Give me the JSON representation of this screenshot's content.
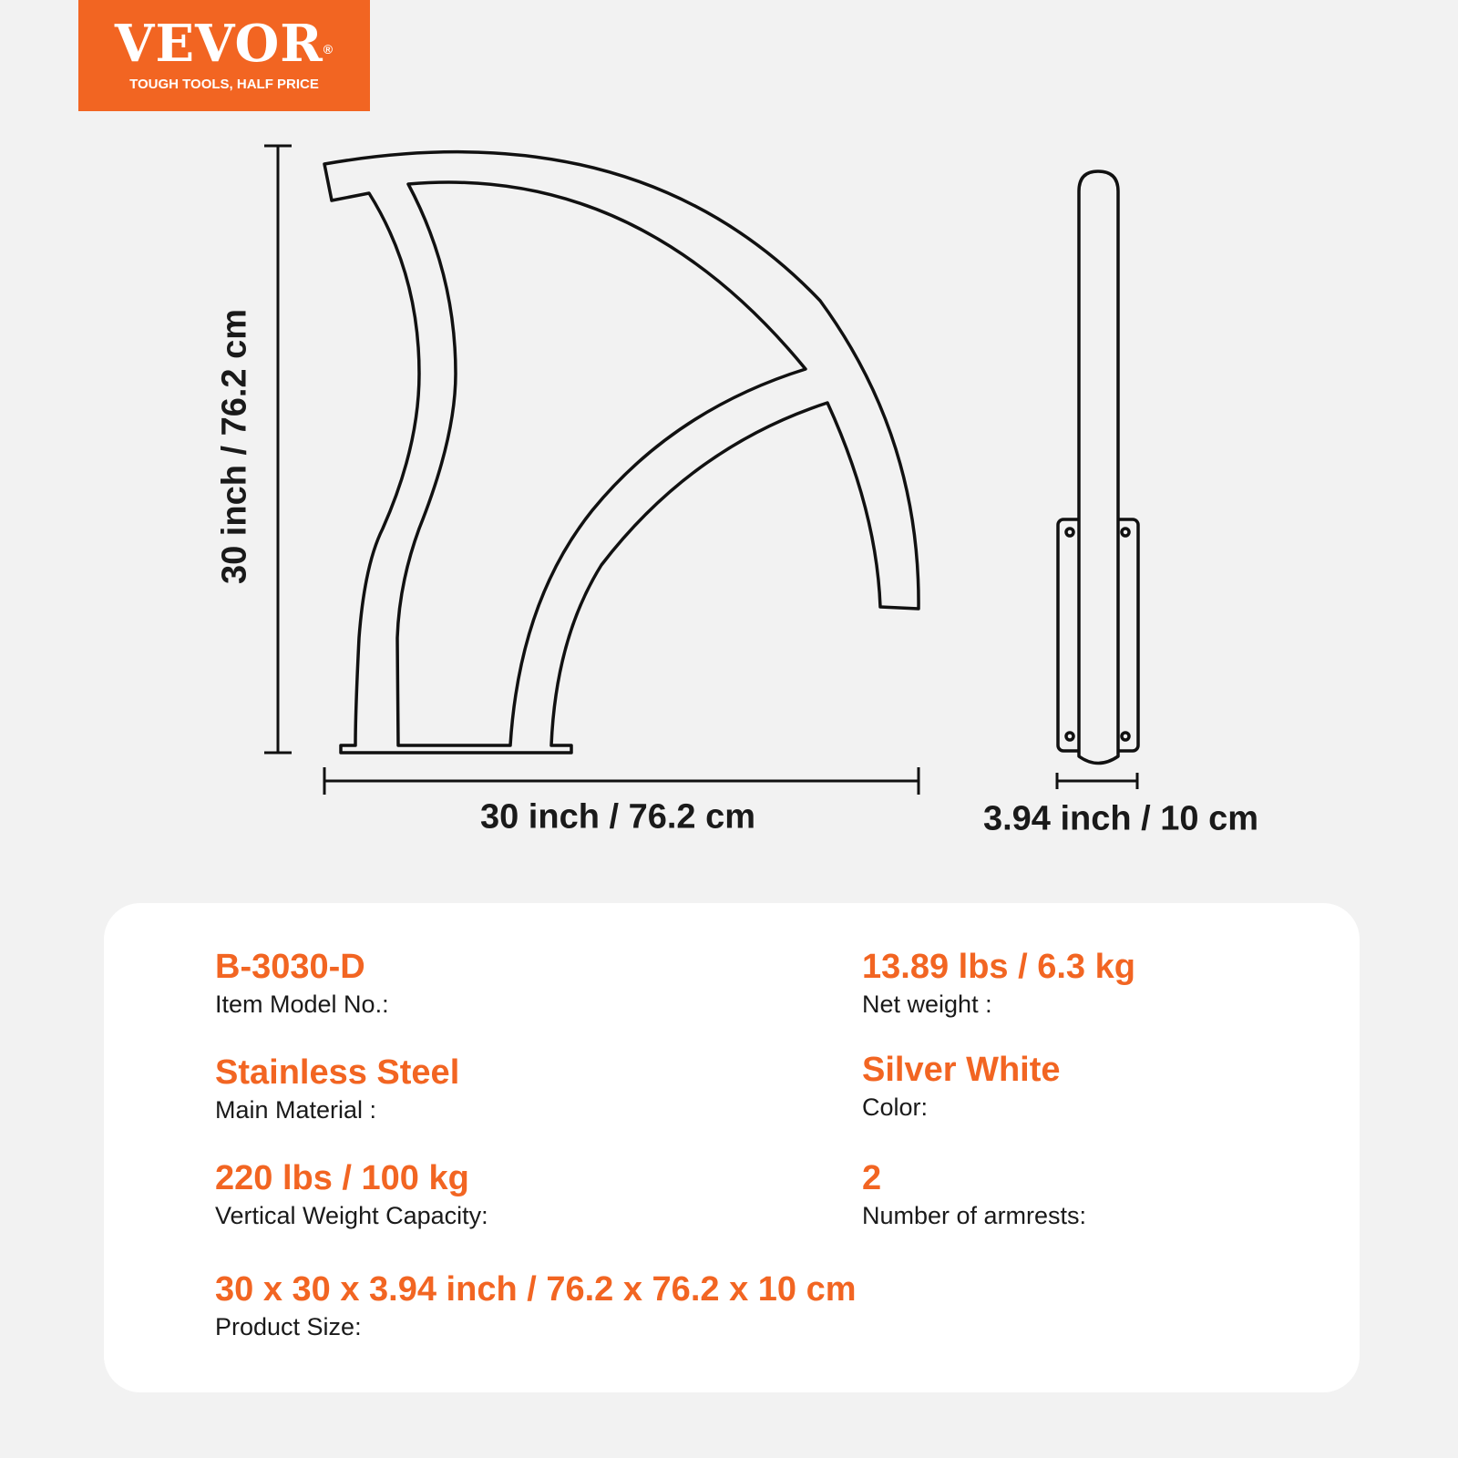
{
  "logo": {
    "brand": "VEVOR",
    "registered": "®",
    "tagline": "TOUGH TOOLS, HALF PRICE"
  },
  "colors": {
    "accent": "#f26522",
    "background": "#f2f2f2",
    "card": "#ffffff",
    "text": "#1a1a1a"
  },
  "dimensions": {
    "height": "30 inch / 76.2 cm",
    "width": "30 inch / 76.2 cm",
    "depth": "3.94 inch / 10 cm"
  },
  "specs": [
    {
      "value": "B-3030-D",
      "label": "Item Model No.:"
    },
    {
      "value": "13.89 lbs / 6.3 kg",
      "label": "Net weight :"
    },
    {
      "value": "Stainless Steel",
      "label": "Main Material :"
    },
    {
      "value": "Silver White",
      "label": "Color:"
    },
    {
      "value": "220 lbs / 100 kg",
      "label": "Vertical Weight Capacity:"
    },
    {
      "value": "2",
      "label": "Number of armrests:"
    },
    {
      "value": "30 x 30 x 3.94 inch / 76.2 x 76.2 x 10 cm",
      "label": "Product Size:"
    }
  ]
}
